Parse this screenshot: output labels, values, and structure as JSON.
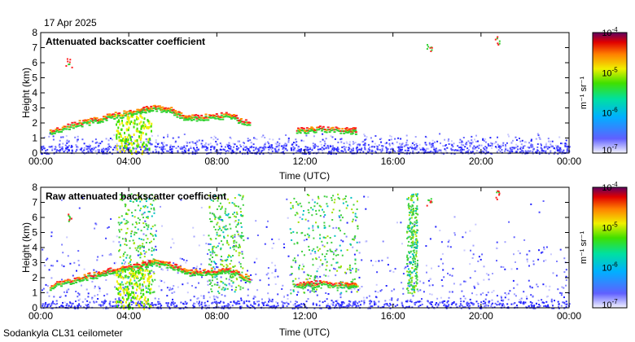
{
  "date_label": "17 Apr 2025",
  "footer_label": "Sodankyla CL31 ceilometer",
  "colors": {
    "low": "#3030ff",
    "mid": "#32d232",
    "high": "#ff2020",
    "background": "#ffffff"
  },
  "chart_data": [
    {
      "type": "heatmap",
      "title": "Attenuated backscatter coefficient",
      "xlabel": "Time (UTC)",
      "ylabel": "Height (km)",
      "xlim": [
        "00:00",
        "00:00"
      ],
      "ylim": [
        0,
        8
      ],
      "x_ticks": [
        "00:00",
        "04:00",
        "08:00",
        "12:00",
        "16:00",
        "20:00",
        "00:00"
      ],
      "y_ticks": [
        "0",
        "1",
        "2",
        "3",
        "4",
        "5",
        "6",
        "7",
        "8"
      ],
      "colorbar": {
        "label": "m⁻¹ sr⁻¹",
        "scale": "log",
        "range": [
          "10^-7",
          "10^-4"
        ],
        "ticks": [
          "10^-4",
          "10^-5",
          "10^-6",
          "10^-7"
        ]
      }
    },
    {
      "type": "heatmap",
      "title": "Raw attenuated backscatter coefficient",
      "xlabel": "Time (UTC)",
      "ylabel": "Height (km)",
      "xlim": [
        "00:00",
        "00:00"
      ],
      "ylim": [
        0,
        8
      ],
      "x_ticks": [
        "00:00",
        "04:00",
        "08:00",
        "12:00",
        "16:00",
        "20:00",
        "00:00"
      ],
      "y_ticks": [
        "0",
        "1",
        "2",
        "3",
        "4",
        "5",
        "6",
        "7",
        "8"
      ],
      "colorbar": {
        "label": "m⁻¹ sr⁻¹",
        "scale": "log",
        "range": [
          "10^-7",
          "10^-4"
        ],
        "ticks": [
          "10^-4",
          "10^-5",
          "10^-6",
          "10^-7"
        ]
      }
    }
  ]
}
